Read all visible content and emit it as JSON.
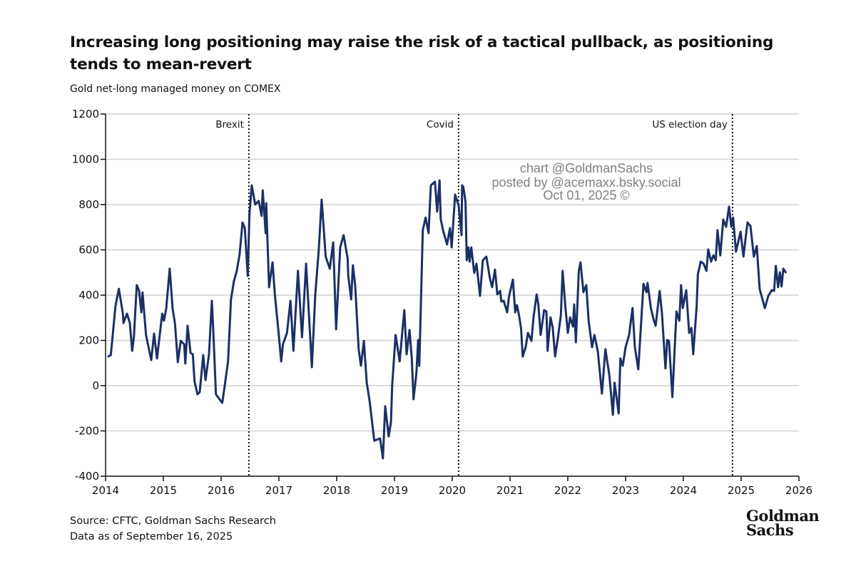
{
  "header": {
    "title": "Increasing long positioning may raise the risk of a tactical pullback, as positioning tends to mean-revert",
    "subtitle": "Gold net-long managed money on COMEX"
  },
  "footer": {
    "source": "Source: CFTC, Goldman Sachs Research",
    "data_as_of": "Data as of September 16, 2025",
    "logo_text": "Goldman Sachs"
  },
  "watermark": {
    "line1": "chart @GoldmanSachs",
    "line2": "posted by @acemaxx.bsky.social",
    "line3": "Oct 01, 2025 ©"
  },
  "colors": {
    "line": "#1c2f66",
    "grid": "#d0d0d0",
    "axis": "#111111",
    "event": "#111111"
  },
  "chart_data": {
    "type": "line",
    "title": "Increasing long positioning may raise the risk of a tactical pullback, as positioning tends to mean-revert",
    "subtitle": "Gold net-long managed money on COMEX",
    "xlabel": "",
    "ylabel": "",
    "xlim": [
      2014,
      2026
    ],
    "ylim": [
      -400,
      1200
    ],
    "x_ticks": [
      "2014",
      "2015",
      "2016",
      "2017",
      "2018",
      "2019",
      "2020",
      "2021",
      "2022",
      "2023",
      "2024",
      "2025",
      "2026"
    ],
    "y_ticks": [
      "1200",
      "1000",
      "800",
      "600",
      "400",
      "200",
      "0",
      "-200",
      "-400"
    ],
    "grid": "horizontal",
    "events": [
      {
        "label": "Brexit",
        "x": 2016.48
      },
      {
        "label": "Covid",
        "x": 2020.11
      },
      {
        "label": "US election day",
        "x": 2024.85
      }
    ],
    "series": [
      {
        "x": [
          2014.05,
          2014.09,
          2014.11,
          2014.17,
          2014.23,
          2014.3,
          2014.31,
          2014.37,
          2014.42,
          2014.46,
          2014.49,
          2014.54,
          2014.58,
          2014.62,
          2014.64,
          2014.7,
          2014.79,
          2014.84,
          2014.89,
          2014.98,
          2015.01,
          2015.05,
          2015.11,
          2015.16,
          2015.2,
          2015.25,
          2015.3,
          2015.36,
          2015.38,
          2015.42,
          2015.47,
          2015.51,
          2015.54,
          2015.59,
          2015.63,
          2015.69,
          2015.73,
          2015.79,
          2015.84,
          2015.86,
          2015.91,
          2016.02,
          2016.06,
          2016.12,
          2016.17,
          2016.22,
          2016.27,
          2016.32,
          2016.37,
          2016.41,
          2016.46,
          2016.49,
          2016.53,
          2016.59,
          2016.65,
          2016.7,
          2016.72,
          2016.77,
          2016.78,
          2016.83,
          2016.89,
          2016.93,
          2016.99,
          2017.04,
          2017.07,
          2017.14,
          2017.2,
          2017.25,
          2017.33,
          2017.4,
          2017.47,
          2017.57,
          2017.63,
          2017.69,
          2017.74,
          2017.81,
          2017.88,
          2017.94,
          2017.99,
          2018.06,
          2018.12,
          2018.19,
          2018.2,
          2018.25,
          2018.28,
          2018.32,
          2018.38,
          2018.42,
          2018.47,
          2018.52,
          2018.57,
          2018.65,
          2018.75,
          2018.8,
          2018.84,
          2018.9,
          2018.94,
          2018.96,
          2019.02,
          2019.09,
          2019.12,
          2019.17,
          2019.21,
          2019.26,
          2019.3,
          2019.33,
          2019.38,
          2019.41,
          2019.43,
          2019.49,
          2019.54,
          2019.59,
          2019.63,
          2019.7,
          2019.74,
          2019.78,
          2019.8,
          2019.84,
          2019.91,
          2019.96,
          2019.99,
          2020.05,
          2020.11,
          2020.16,
          2020.17,
          2020.19,
          2020.23,
          2020.25,
          2020.28,
          2020.3,
          2020.33,
          2020.38,
          2020.42,
          2020.48,
          2020.53,
          2020.59,
          2020.65,
          2020.69,
          2020.74,
          2020.78,
          2020.83,
          2020.85,
          2020.89,
          2020.95,
          2020.98,
          2021.05,
          2021.09,
          2021.12,
          2021.15,
          2021.19,
          2021.22,
          2021.27,
          2021.31,
          2021.37,
          2021.41,
          2021.46,
          2021.49,
          2021.53,
          2021.59,
          2021.63,
          2021.65,
          2021.7,
          2021.74,
          2021.78,
          2021.83,
          2021.88,
          2021.91,
          2021.96,
          2022.0,
          2022.04,
          2022.09,
          2022.11,
          2022.14,
          2022.19,
          2022.22,
          2022.27,
          2022.32,
          2022.36,
          2022.42,
          2022.46,
          2022.52,
          2022.59,
          2022.65,
          2022.72,
          2022.78,
          2022.81,
          2022.88,
          2022.91,
          2022.95,
          2023.0,
          2023.06,
          2023.12,
          2023.16,
          2023.22,
          2023.31,
          2023.36,
          2023.38,
          2023.44,
          2023.49,
          2023.52,
          2023.59,
          2023.63,
          2023.69,
          2023.72,
          2023.75,
          2023.81,
          2023.88,
          2023.93,
          2023.96,
          2023.99,
          2024.05,
          2024.1,
          2024.14,
          2024.17,
          2024.23,
          2024.25,
          2024.3,
          2024.35,
          2024.4,
          2024.43,
          2024.48,
          2024.52,
          2024.56,
          2024.59,
          2024.64,
          2024.69,
          2024.74,
          2024.79,
          2024.83,
          2024.86,
          2024.91,
          2024.99,
          2025.04,
          2025.11,
          2025.16,
          2025.22,
          2025.27,
          2025.32,
          2025.41,
          2025.47,
          2025.53,
          2025.57,
          2025.6,
          2025.64,
          2025.67,
          2025.7,
          2025.73,
          2025.77
        ],
        "y": [
          129,
          135,
          186,
          350,
          428,
          318,
          277,
          318,
          277,
          154,
          214,
          444,
          419,
          324,
          412,
          224,
          113,
          230,
          120,
          318,
          287,
          340,
          517,
          340,
          277,
          104,
          198,
          183,
          98,
          265,
          145,
          139,
          19,
          -38,
          -28,
          135,
          25,
          139,
          375,
          265,
          -38,
          -76,
          -3,
          107,
          381,
          460,
          507,
          580,
          721,
          696,
          485,
          759,
          885,
          800,
          816,
          750,
          863,
          674,
          806,
          435,
          545,
          403,
          246,
          107,
          183,
          233,
          375,
          154,
          507,
          214,
          539,
          82,
          403,
          602,
          822,
          570,
          517,
          633,
          249,
          611,
          665,
          561,
          485,
          381,
          532,
          444,
          161,
          88,
          198,
          13,
          -69,
          -243,
          -233,
          -321,
          -91,
          -224,
          -161,
          3,
          224,
          107,
          192,
          334,
          139,
          246,
          120,
          -60,
          57,
          202,
          88,
          687,
          743,
          674,
          885,
          901,
          769,
          907,
          737,
          687,
          624,
          696,
          611,
          844,
          797,
          665,
          885,
          879,
          813,
          554,
          611,
          548,
          611,
          498,
          539,
          397,
          554,
          570,
          476,
          435,
          513,
          403,
          419,
          372,
          375,
          324,
          391,
          469,
          324,
          356,
          318,
          255,
          129,
          170,
          233,
          198,
          309,
          403,
          359,
          224,
          334,
          328,
          154,
          302,
          255,
          129,
          214,
          312,
          507,
          340,
          233,
          302,
          261,
          359,
          192,
          507,
          545,
          413,
          444,
          287,
          170,
          224,
          151,
          -35,
          161,
          44,
          -129,
          13,
          -123,
          120,
          88,
          170,
          224,
          343,
          170,
          72,
          450,
          413,
          454,
          340,
          287,
          265,
          419,
          318,
          76,
          202,
          198,
          -50,
          328,
          287,
          444,
          343,
          422,
          233,
          255,
          139,
          350,
          491,
          548,
          539,
          507,
          602,
          548,
          576,
          554,
          687,
          576,
          734,
          702,
          791,
          702,
          743,
          592,
          680,
          570,
          721,
          706,
          570,
          617,
          428,
          343,
          397,
          422,
          419,
          529,
          435,
          501,
          438,
          517,
          501
        ]
      }
    ]
  }
}
